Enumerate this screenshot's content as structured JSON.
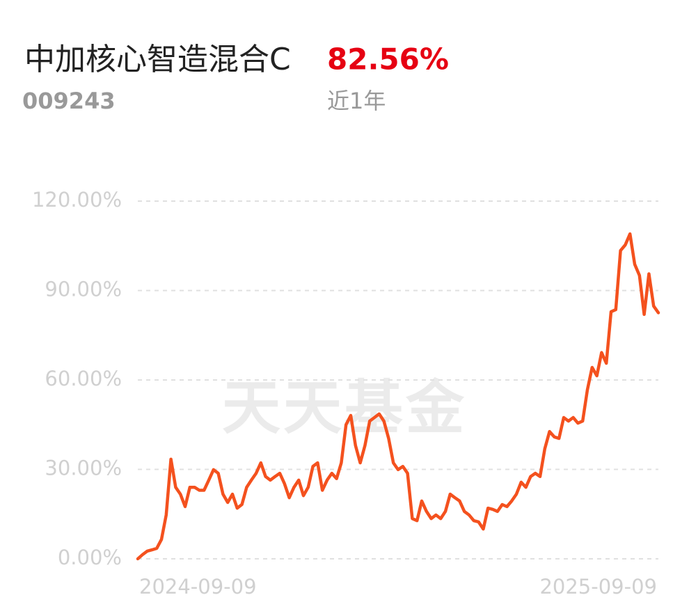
{
  "chart_data": {
    "type": "line",
    "title": "中加核心智造混合C",
    "return_label": "82.56%",
    "code": "009243",
    "period": "近1年",
    "watermark": "天天基金",
    "categories": [
      "2024-09-09",
      null,
      null,
      null,
      null,
      null,
      null,
      null,
      null,
      null,
      null,
      null,
      null,
      null,
      null,
      null,
      null,
      null,
      null,
      null,
      null,
      null,
      null,
      null,
      null,
      null,
      null,
      null,
      null,
      null,
      null,
      null,
      null,
      null,
      null,
      null,
      null,
      null,
      null,
      null,
      null,
      null,
      null,
      null,
      null,
      null,
      null,
      null,
      null,
      null,
      null,
      null,
      null,
      null,
      null,
      null,
      null,
      null,
      null,
      null,
      null,
      null,
      null,
      null,
      null,
      null,
      null,
      null,
      null,
      null,
      null,
      null,
      null,
      null,
      null,
      null,
      null,
      null,
      null,
      null,
      null,
      null,
      null,
      null,
      null,
      null,
      null,
      null,
      null,
      null,
      null,
      null,
      null,
      null,
      null,
      null,
      null,
      null,
      null,
      null,
      null,
      null,
      null,
      null,
      null,
      null,
      null,
      null,
      null,
      null,
      "2025-09-09"
    ],
    "series": [
      {
        "color": "#f4511e",
        "values": [
          0,
          1.4,
          2.6,
          3.0,
          3.5,
          6.5,
          14.7,
          33.4,
          24,
          21.7,
          17.5,
          24,
          24,
          23,
          23,
          26.4,
          29.9,
          28.7,
          21.7,
          18.9,
          21.7,
          17,
          18.2,
          24,
          26.4,
          28.7,
          32.2,
          27.6,
          26.4,
          27.6,
          28.7,
          25.2,
          20.5,
          24,
          26.4,
          21.2,
          24,
          31,
          32.2,
          23,
          26.4,
          28.7,
          26.9,
          32.2,
          45,
          48.1,
          38,
          32.2,
          38,
          46.2,
          47.4,
          48.6,
          46.2,
          40.4,
          32.2,
          29.9,
          31,
          28.7,
          13.5,
          12.8,
          19.4,
          15.9,
          13.5,
          14.7,
          13.5,
          15.9,
          21.7,
          20.5,
          19.4,
          15.9,
          14.7,
          12.8,
          12.4,
          10,
          17,
          16.6,
          15.9,
          18.2,
          17.5,
          19.4,
          21.7,
          25.7,
          24,
          27.6,
          28.7,
          27.6,
          36.9,
          42.7,
          40.9,
          40.4,
          47.4,
          46.2,
          47.4,
          45.5,
          46.2,
          56.7,
          64.2,
          61.4,
          69.2,
          65.6,
          82.9,
          83.6,
          103.4,
          105.3,
          109,
          98.8,
          95.1,
          82,
          95.6,
          84.8,
          82.56
        ]
      }
    ],
    "ylim": [
      0,
      120
    ],
    "yticks": [
      {
        "value": 0,
        "label": "0.00%"
      },
      {
        "value": 30,
        "label": "30.00%"
      },
      {
        "value": 60,
        "label": "60.00%"
      },
      {
        "value": 90,
        "label": "90.00%"
      },
      {
        "value": 120,
        "label": "120.00%"
      }
    ],
    "grid": true
  }
}
